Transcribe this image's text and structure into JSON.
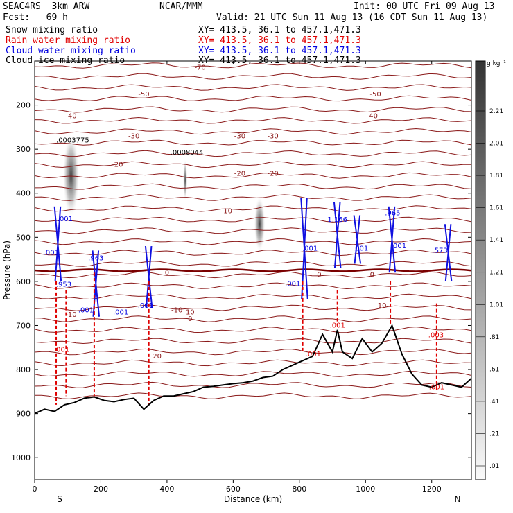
{
  "header": {
    "model": "SEAC4RS  3km ARW",
    "org": "NCAR/MMM",
    "init": "Init: 00 UTC Fri 09 Aug 13",
    "fcst": "Fcst:   69 h",
    "valid": "Valid: 21 UTC Sun 11 Aug 13 (16 CDT Sun 11 Aug 13)",
    "fields": [
      {
        "name": "Snow mixing ratio",
        "xy": "XY= 413.5, 36.1 to 457.1,471.3",
        "color": "#000000"
      },
      {
        "name": "Rain water mixing ratio",
        "xy": "XY= 413.5, 36.1 to 457.1,471.3",
        "color": "#e00000"
      },
      {
        "name": "Cloud water mixing ratio",
        "xy": "XY= 413.5, 36.1 to 457.1,471.3",
        "color": "#0000e0"
      },
      {
        "name": "Cloud ice mixing ratio",
        "xy": "XY= 413.5, 36.1 to 457.1,471.3",
        "color": "#000000"
      }
    ]
  },
  "colorbar": {
    "unit": "g kg⁻¹",
    "labels": [
      "2.21",
      "2.01",
      "1.81",
      "1.61",
      "1.41",
      "1.21",
      "1.01",
      ".81",
      ".61",
      ".41",
      ".21",
      ".01"
    ]
  },
  "chart_data": {
    "type": "contour",
    "xlabel": "Distance (km)",
    "ylabel": "Pressure (hPa)",
    "xlim": [
      0,
      1320
    ],
    "ylim": [
      1050,
      100
    ],
    "xticks": [
      0,
      200,
      400,
      600,
      800,
      1000,
      1200
    ],
    "yticks": [
      200,
      300,
      400,
      500,
      600,
      700,
      800,
      900,
      1000
    ],
    "x_endpoint_labels": {
      "left": "S",
      "right": "N"
    },
    "temperature_isotherms": [
      {
        "label": "-70",
        "x": 500,
        "p": 120
      },
      {
        "label": "-50",
        "x": 330,
        "p": 180
      },
      {
        "label": "-50",
        "x": 1030,
        "p": 180
      },
      {
        "label": "-40",
        "x": 110,
        "p": 230
      },
      {
        "label": "-40",
        "x": 1020,
        "p": 230
      },
      {
        "label": "-30",
        "x": 300,
        "p": 275
      },
      {
        "label": "-30",
        "x": 620,
        "p": 275
      },
      {
        "label": "-30",
        "x": 720,
        "p": 275
      },
      {
        "label": "-20",
        "x": 250,
        "p": 340
      },
      {
        "label": "-20",
        "x": 620,
        "p": 360
      },
      {
        "label": "-20",
        "x": 720,
        "p": 360
      },
      {
        "label": "-10",
        "x": 580,
        "p": 445
      },
      {
        "label": "-10",
        "x": 110,
        "p": 680
      },
      {
        "label": "-10",
        "x": 430,
        "p": 670
      },
      {
        "label": "0",
        "x": 400,
        "p": 585
      },
      {
        "label": "0",
        "x": 860,
        "p": 590
      },
      {
        "label": "0",
        "x": 1020,
        "p": 590
      },
      {
        "label": "0",
        "x": 470,
        "p": 690
      },
      {
        "label": "10",
        "x": 1050,
        "p": 660
      },
      {
        "label": "10",
        "x": 470,
        "p": 675
      },
      {
        "label": "20",
        "x": 370,
        "p": 775
      }
    ],
    "mixing_ratio_labels": [
      {
        "label": ".0003775",
        "x": 115,
        "p": 285,
        "color": "#000000"
      },
      {
        "label": ".0008044",
        "x": 460,
        "p": 312,
        "color": "#000000"
      },
      {
        "label": ".001",
        "x": 92,
        "p": 463,
        "color": "#0000e0"
      },
      {
        "label": ".001",
        "x": 50,
        "p": 540,
        "color": "#0000e0"
      },
      {
        "label": ".963",
        "x": 185,
        "p": 552,
        "color": "#0000e0"
      },
      {
        "label": ".953",
        "x": 88,
        "p": 612,
        "color": "#0000e0"
      },
      {
        "label": ".001",
        "x": 155,
        "p": 670,
        "color": "#0000e0"
      },
      {
        "label": ".001",
        "x": 260,
        "p": 675,
        "color": "#0000e0"
      },
      {
        "label": ".001",
        "x": 335,
        "p": 660,
        "color": "#0000e0"
      },
      {
        "label": ".001",
        "x": 780,
        "p": 610,
        "color": "#0000e0"
      },
      {
        "label": ".001",
        "x": 832,
        "p": 530,
        "color": "#0000e0"
      },
      {
        "label": "1.166",
        "x": 915,
        "p": 465,
        "color": "#0000e0"
      },
      {
        "label": ".001",
        "x": 985,
        "p": 530,
        "color": "#0000e0"
      },
      {
        "label": ".965",
        "x": 1082,
        "p": 450,
        "color": "#0000e0"
      },
      {
        "label": ".001",
        "x": 1100,
        "p": 525,
        "color": "#0000e0"
      },
      {
        "label": ".573",
        "x": 1225,
        "p": 535,
        "color": "#0000e0"
      },
      {
        "label": ".001",
        "x": 82,
        "p": 760,
        "color": "#e00000"
      },
      {
        "label": ".001",
        "x": 915,
        "p": 705,
        "color": "#e00000"
      },
      {
        "label": ".001",
        "x": 842,
        "p": 770,
        "color": "#e00000"
      },
      {
        "label": ".003",
        "x": 1213,
        "p": 727,
        "color": "#e00000"
      },
      {
        "label": ".001",
        "x": 1215,
        "p": 845,
        "color": "#e00000"
      }
    ],
    "freezing_level": {
      "label": "0",
      "p": 575
    },
    "terrain": {
      "x": [
        0,
        30,
        60,
        90,
        120,
        150,
        180,
        210,
        240,
        270,
        300,
        330,
        360,
        390,
        420,
        450,
        480,
        510,
        540,
        570,
        600,
        630,
        660,
        690,
        720,
        750,
        780,
        810,
        840,
        870,
        900,
        915,
        930,
        960,
        990,
        1020,
        1050,
        1080,
        1110,
        1140,
        1170,
        1200,
        1230,
        1260,
        1290,
        1320
      ],
      "p": [
        900,
        890,
        895,
        880,
        875,
        865,
        862,
        870,
        873,
        868,
        865,
        890,
        870,
        860,
        860,
        855,
        850,
        840,
        838,
        835,
        832,
        830,
        826,
        818,
        815,
        800,
        790,
        780,
        770,
        720,
        760,
        710,
        760,
        775,
        730,
        760,
        740,
        700,
        765,
        810,
        835,
        840,
        830,
        835,
        840,
        820
      ]
    }
  }
}
